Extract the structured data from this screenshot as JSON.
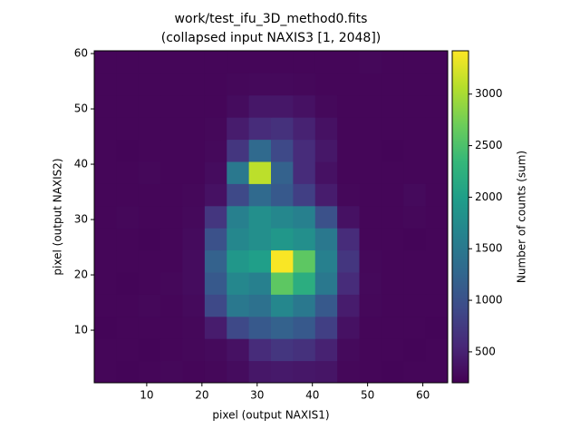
{
  "chart_data": {
    "type": "heatmap",
    "title": "work/test_ifu_3D_method0.fits",
    "subtitle": "(collapsed input NAXIS3 [1, 2048])",
    "xlabel": "pixel (output NAXIS1)",
    "ylabel": "pixel (output NAXIS2)",
    "colorbar_label": "Number of counts (sum)",
    "colormap": "viridis",
    "xlim": [
      0.5,
      64.5
    ],
    "ylim": [
      0.5,
      60.5
    ],
    "xticks": [
      10,
      20,
      30,
      40,
      50,
      60
    ],
    "yticks": [
      10,
      20,
      30,
      40,
      50,
      60
    ],
    "clim": [
      200,
      3420
    ],
    "cticks": [
      500,
      1000,
      1500,
      2000,
      2500,
      3000
    ],
    "values": [
      [
        250,
        240,
        250,
        260,
        250,
        260,
        300,
        400,
        420,
        400,
        380,
        260,
        250,
        240,
        250,
        250
      ],
      [
        250,
        250,
        240,
        250,
        260,
        280,
        350,
        600,
        700,
        650,
        500,
        280,
        250,
        250,
        240,
        250
      ],
      [
        240,
        250,
        250,
        250,
        260,
        450,
        900,
        1100,
        1200,
        1100,
        800,
        350,
        250,
        250,
        250,
        240
      ],
      [
        250,
        250,
        260,
        250,
        280,
        900,
        1500,
        1400,
        1700,
        1500,
        1100,
        450,
        260,
        250,
        250,
        250
      ],
      [
        250,
        240,
        250,
        260,
        300,
        1100,
        1700,
        1600,
        2600,
        2200,
        1500,
        600,
        270,
        250,
        250,
        250
      ],
      [
        250,
        250,
        250,
        250,
        300,
        1200,
        1900,
        2000,
        3400,
        2600,
        1600,
        700,
        260,
        250,
        250,
        250
      ],
      [
        250,
        250,
        240,
        250,
        290,
        1000,
        1700,
        1800,
        1900,
        1800,
        1500,
        600,
        250,
        250,
        240,
        250
      ],
      [
        250,
        260,
        250,
        250,
        270,
        700,
        1600,
        1800,
        1700,
        1600,
        1000,
        350,
        250,
        250,
        260,
        250
      ],
      [
        250,
        250,
        250,
        250,
        260,
        350,
        900,
        1300,
        1100,
        800,
        450,
        260,
        250,
        250,
        280,
        250
      ],
      [
        250,
        250,
        260,
        250,
        250,
        300,
        1500,
        3100,
        1200,
        600,
        350,
        250,
        250,
        250,
        250,
        250
      ],
      [
        250,
        240,
        250,
        250,
        250,
        270,
        700,
        1300,
        900,
        600,
        400,
        250,
        250,
        240,
        250,
        250
      ],
      [
        250,
        250,
        250,
        250,
        250,
        260,
        450,
        600,
        650,
        500,
        350,
        250,
        250,
        250,
        250,
        250
      ],
      [
        250,
        250,
        250,
        250,
        250,
        250,
        300,
        400,
        400,
        350,
        270,
        250,
        250,
        250,
        250,
        250
      ],
      [
        250,
        250,
        250,
        250,
        250,
        250,
        260,
        270,
        270,
        260,
        250,
        250,
        250,
        250,
        250,
        250
      ],
      [
        250,
        250,
        250,
        250,
        250,
        250,
        250,
        250,
        250,
        250,
        250,
        250,
        260,
        250,
        250,
        250
      ]
    ]
  }
}
